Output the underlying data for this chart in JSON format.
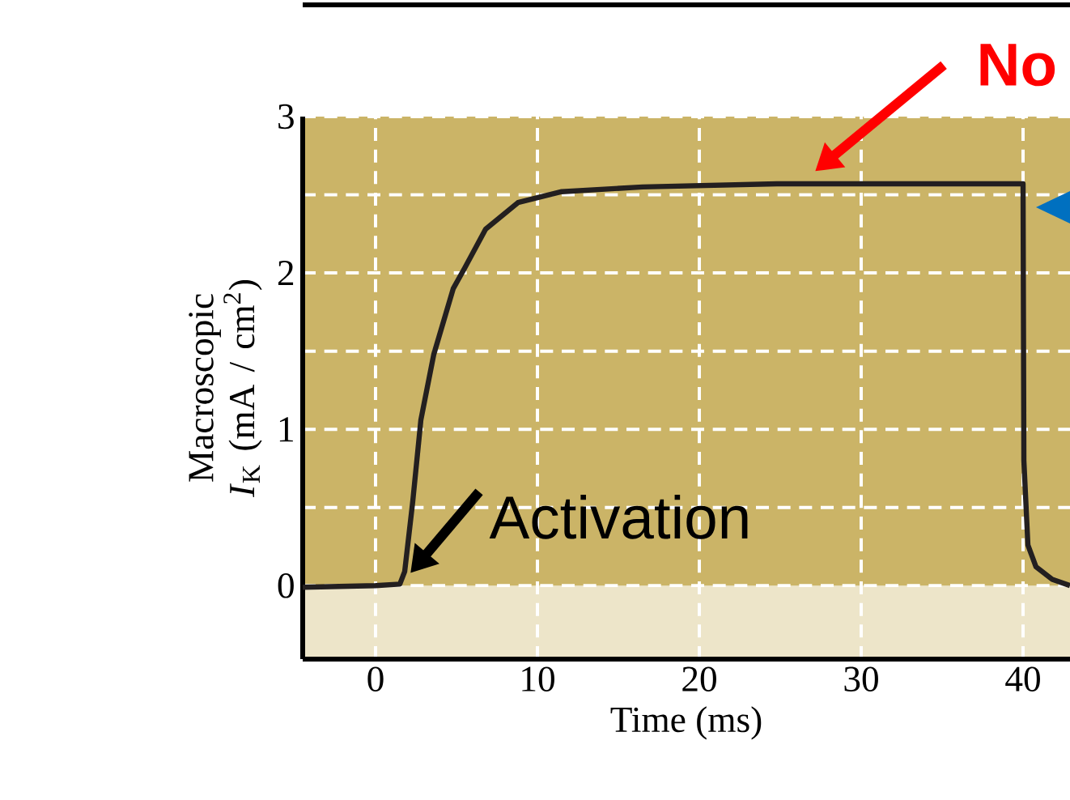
{
  "chart_data": {
    "type": "line",
    "xlabel": "Time (ms)",
    "ylabel": "Macroscopic *I*$_{K}$ (mA / cm$^{2}$)",
    "x": [
      -4.5,
      0,
      1.5,
      1.8,
      2.3,
      2.8,
      3.6,
      4.8,
      5.5,
      6.8,
      8.8,
      11.5,
      16.5,
      24.8,
      40,
      40.05,
      40.3,
      40.8,
      41.8,
      42.9
    ],
    "series": [
      {
        "color": "#231f20",
        "values": [
          -0.01,
          0,
          0.01,
          0.09,
          0.54,
          1.06,
          1.48,
          1.9,
          2.03,
          2.28,
          2.45,
          2.52,
          2.55,
          2.57,
          2.57,
          0.8,
          0.26,
          0.12,
          0.04,
          0.0
        ]
      }
    ],
    "xlim": [
      -4.5,
      42.9
    ],
    "ylim": [
      -0.47,
      3
    ],
    "xticks": [
      0,
      10,
      20,
      30,
      40
    ],
    "yticks": [
      0,
      1,
      2,
      3
    ],
    "grid": true,
    "bands": [
      {
        "axis": "y",
        "from": -0.47,
        "to": 0,
        "color": "#ede5c9"
      },
      {
        "axis": "y",
        "from": 0,
        "to": 3,
        "color": "#cbb467"
      }
    ],
    "annotations": [
      {
        "text": "Activation",
        "x": 2,
        "y": 0
      },
      "No"
    ]
  }
}
